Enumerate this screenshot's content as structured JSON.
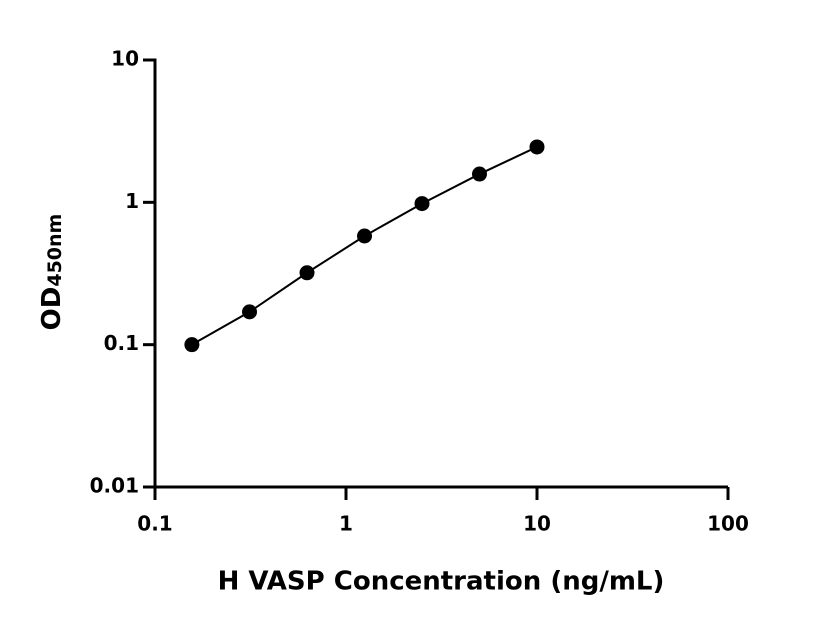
{
  "chart_data": {
    "type": "scatter",
    "x_label": "H VASP Concentration (ng/mL)",
    "y_label": {
      "main": "OD",
      "subscript": "450nm"
    },
    "x": [
      0.156,
      0.3125,
      0.625,
      1.25,
      2.5,
      5,
      10
    ],
    "series": [
      {
        "values": [
          0.1,
          0.17,
          0.32,
          0.58,
          0.98,
          1.58,
          2.45
        ],
        "color": "#000000"
      }
    ],
    "fit_line": true,
    "x_log": true,
    "y_log": true,
    "xlim": [
      0.1,
      100
    ],
    "xticks": [
      0.1,
      1,
      10,
      100
    ],
    "ylim": [
      0.01,
      10
    ],
    "yticks": [
      0.01,
      0.1,
      1,
      10
    ],
    "grid": false
  }
}
